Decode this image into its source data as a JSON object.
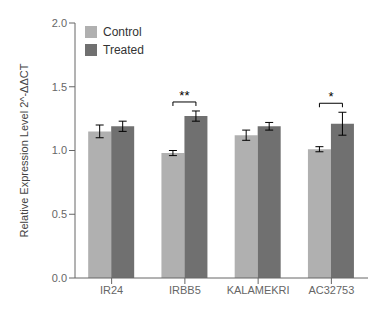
{
  "chart_data": {
    "type": "bar",
    "categories": [
      "IR24",
      "IRBB5",
      "KALAMEKRI",
      "AC32753"
    ],
    "series": [
      {
        "name": "Control",
        "color": "#b0b0b0",
        "values": [
          1.15,
          0.98,
          1.12,
          1.01
        ],
        "errors": [
          0.05,
          0.02,
          0.04,
          0.02
        ]
      },
      {
        "name": "Treated",
        "color": "#707070",
        "values": [
          1.19,
          1.27,
          1.19,
          1.21
        ],
        "errors": [
          0.04,
          0.04,
          0.03,
          0.09
        ]
      }
    ],
    "ylabel": "Relative Expression Level 2^-ΔΔCT",
    "ylim": [
      0.0,
      2.0
    ],
    "yticks": [
      {
        "value": 0.0,
        "label": "0.0"
      },
      0.5,
      {
        "value": 1.0,
        "label": "1.0"
      },
      1.5,
      {
        "value": 2.0,
        "label": "2.0"
      }
    ],
    "legend": "upper left",
    "annotations": [
      {
        "text": "**",
        "category": "IRBB5"
      },
      {
        "text": "*",
        "category": "AC32753"
      }
    ]
  }
}
